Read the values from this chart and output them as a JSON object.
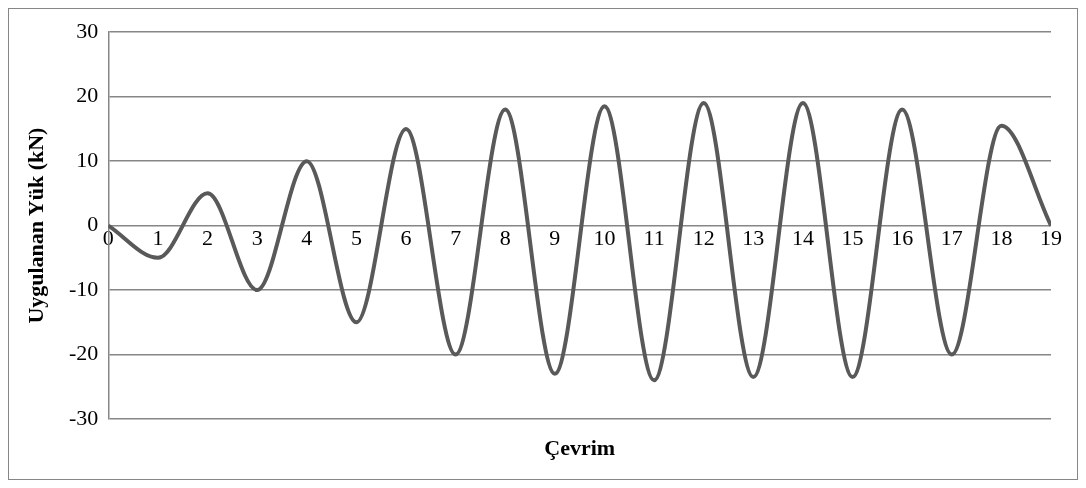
{
  "chart_data": {
    "type": "line",
    "xlabel": "Çevrim",
    "ylabel": "Uygulanan Yük (kN)",
    "x": [
      0,
      1,
      2,
      3,
      4,
      5,
      6,
      7,
      8,
      9,
      10,
      11,
      12,
      13,
      14,
      15,
      16,
      17,
      18,
      19
    ],
    "series": [
      {
        "color": "#595959",
        "values": [
          0,
          -5,
          5,
          -10,
          10,
          -15,
          15,
          -20,
          18,
          -23,
          18.5,
          -24,
          19,
          -23.5,
          19,
          -23.5,
          18,
          -20,
          15.5,
          0
        ]
      }
    ],
    "xlim": [
      0,
      19
    ],
    "xticks": [
      0,
      1,
      2,
      3,
      4,
      5,
      6,
      7,
      8,
      9,
      10,
      11,
      12,
      13,
      14,
      15,
      16,
      17,
      18,
      19
    ],
    "ylim": [
      -30,
      30
    ],
    "yticks": [
      -30,
      -20,
      -10,
      0,
      10,
      20,
      30
    ],
    "grid": "y",
    "legend": false,
    "marker": "none",
    "line_style": "solid"
  }
}
